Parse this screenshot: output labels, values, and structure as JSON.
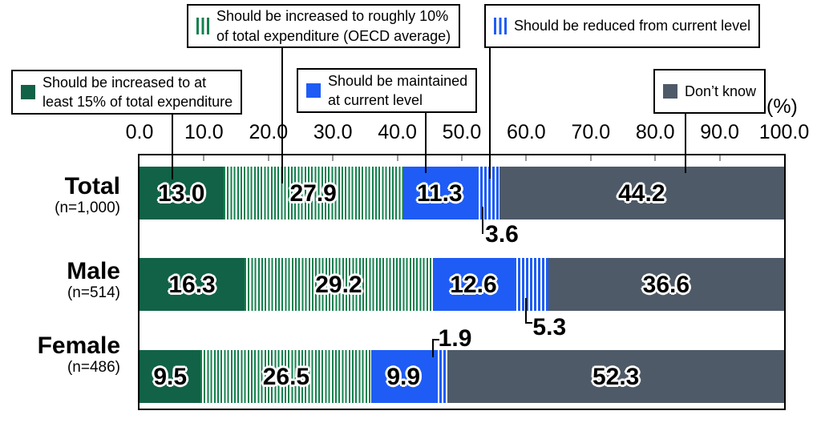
{
  "unit_label": "(%)",
  "axis": {
    "tick_labels": [
      "0.0",
      "10.0",
      "20.0",
      "30.0",
      "40.0",
      "50.0",
      "60.0",
      "70.0",
      "80.0",
      "90.0",
      "100.0"
    ]
  },
  "colors": {
    "green": "#116246",
    "green_stripe": "#15804E",
    "blue": "#1E5CF5",
    "gray": "#4E5A68"
  },
  "legend": [
    {
      "label_lines": [
        "Should be increased to at",
        "least 15% of total expenditure"
      ],
      "swatch": "solid-green"
    },
    {
      "label_lines": [
        "Should be increased to roughly 10%",
        "of total expenditure (OECD average)"
      ],
      "swatch": "striped-green"
    },
    {
      "label_lines": [
        "Should be maintained",
        "at current level"
      ],
      "swatch": "solid-blue"
    },
    {
      "label_lines": [
        "Should be reduced from current level"
      ],
      "swatch": "striped-blue"
    },
    {
      "label_lines": [
        "Don’t know"
      ],
      "swatch": "solid-gray"
    }
  ],
  "chart_data": {
    "type": "bar",
    "stacked": true,
    "orientation": "horizontal",
    "unit": "%",
    "xlim": [
      0,
      100
    ],
    "categories": [
      "Total",
      "Male",
      "Female"
    ],
    "category_sublabels": [
      "(n=1,000)",
      "(n=514)",
      "(n=486)"
    ],
    "series": [
      {
        "name": "Should be increased to at least 15% of total expenditure",
        "fill": "solid",
        "color_key": "green",
        "values": [
          13.0,
          16.3,
          9.5
        ]
      },
      {
        "name": "Should be increased to roughly 10% of total expenditure (OECD average)",
        "fill": "striped",
        "color_key": "green_stripe",
        "values": [
          27.9,
          29.2,
          26.5
        ]
      },
      {
        "name": "Should be maintained at current level",
        "fill": "solid",
        "color_key": "blue",
        "values": [
          11.3,
          12.6,
          9.9
        ]
      },
      {
        "name": "Should be reduced from current level",
        "fill": "striped",
        "color_key": "blue",
        "values": [
          3.6,
          5.3,
          1.9
        ],
        "label_outside": true
      },
      {
        "name": "Don’t know",
        "fill": "solid",
        "color_key": "gray",
        "values": [
          44.2,
          36.6,
          52.3
        ]
      }
    ]
  }
}
